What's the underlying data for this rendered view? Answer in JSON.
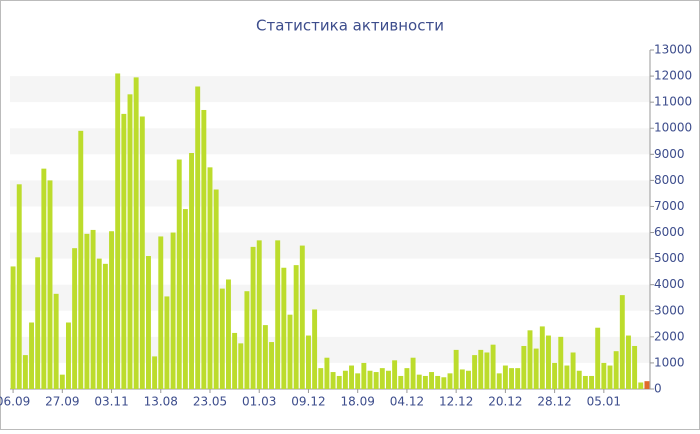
{
  "chart_data": {
    "type": "bar",
    "title": "Статистика активности",
    "categories": [
      "06.09",
      null,
      null,
      null,
      null,
      null,
      null,
      null,
      "27.09",
      null,
      null,
      null,
      null,
      null,
      null,
      null,
      "03.11",
      null,
      null,
      null,
      null,
      null,
      null,
      null,
      "13.08",
      null,
      null,
      null,
      null,
      null,
      null,
      null,
      "23.05",
      null,
      null,
      null,
      null,
      null,
      null,
      null,
      "01.03",
      null,
      null,
      null,
      null,
      null,
      null,
      null,
      "09.12",
      null,
      null,
      null,
      null,
      null,
      null,
      null,
      "18.09",
      null,
      null,
      null,
      null,
      null,
      null,
      null,
      "04.12",
      null,
      null,
      null,
      null,
      null,
      null,
      null,
      "12.12",
      null,
      null,
      null,
      null,
      null,
      null,
      null,
      "20.12",
      null,
      null,
      null,
      null,
      null,
      null,
      null,
      "28.12",
      null,
      null,
      null,
      null,
      null,
      null,
      null,
      "05.01",
      null,
      null,
      null,
      null,
      null,
      null,
      null
    ],
    "values": [
      4700,
      7850,
      1300,
      2550,
      5050,
      8450,
      8000,
      3650,
      550,
      2550,
      5400,
      9900,
      5950,
      6100,
      5000,
      4800,
      6050,
      12100,
      10550,
      11300,
      11950,
      10450,
      5100,
      1250,
      5850,
      3550,
      6000,
      8800,
      6900,
      9050,
      11600,
      10700,
      8500,
      7650,
      3850,
      4200,
      2150,
      1750,
      3750,
      5450,
      5700,
      2450,
      1800,
      5700,
      4650,
      2850,
      4750,
      5500,
      2050,
      3050,
      800,
      1200,
      650,
      500,
      700,
      900,
      600,
      1000,
      700,
      650,
      800,
      700,
      1100,
      500,
      800,
      1200,
      550,
      500,
      650,
      500,
      450,
      600,
      1500,
      750,
      700,
      1300,
      1500,
      1400,
      1700,
      600,
      900,
      800,
      800,
      1650,
      2250,
      1550,
      2400,
      2050,
      1000,
      2000,
      900,
      1400,
      700,
      500,
      500,
      2350,
      1000,
      900,
      1450,
      3600,
      2050,
      1650,
      250,
      300
    ],
    "color": "#bcdc2c",
    "highlight_color": "#e06a2a",
    "ylim": [
      0,
      13000
    ],
    "yticks": [
      0,
      1000,
      2000,
      3000,
      4000,
      5000,
      6000,
      7000,
      8000,
      9000,
      10000,
      11000,
      12000,
      13000
    ],
    "grid": true
  }
}
